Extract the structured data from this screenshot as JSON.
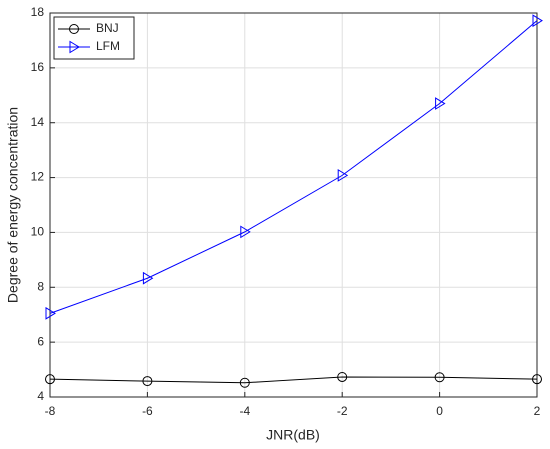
{
  "chart_data": {
    "type": "line",
    "xlabel": "JNR(dB)",
    "ylabel": "Degree of energy concentration",
    "x": [
      -8,
      -6,
      -4,
      -2,
      0,
      2
    ],
    "series": [
      {
        "name": "BNJ",
        "color": "#000000",
        "marker": "circle",
        "values": [
          4.65,
          4.58,
          4.52,
          4.73,
          4.72,
          4.65
        ]
      },
      {
        "name": "LFM",
        "color": "#0000ff",
        "marker": "triangle-right",
        "values": [
          7.05,
          8.33,
          10.02,
          12.08,
          14.7,
          17.72
        ]
      }
    ],
    "xlim": [
      -8,
      2
    ],
    "xticks": [
      -8,
      -6,
      -4,
      -2,
      0,
      2
    ],
    "ylim": [
      4,
      18
    ],
    "yticks": [
      4,
      6,
      8,
      10,
      12,
      14,
      16,
      18
    ],
    "grid": true,
    "legend": "upper-left"
  }
}
